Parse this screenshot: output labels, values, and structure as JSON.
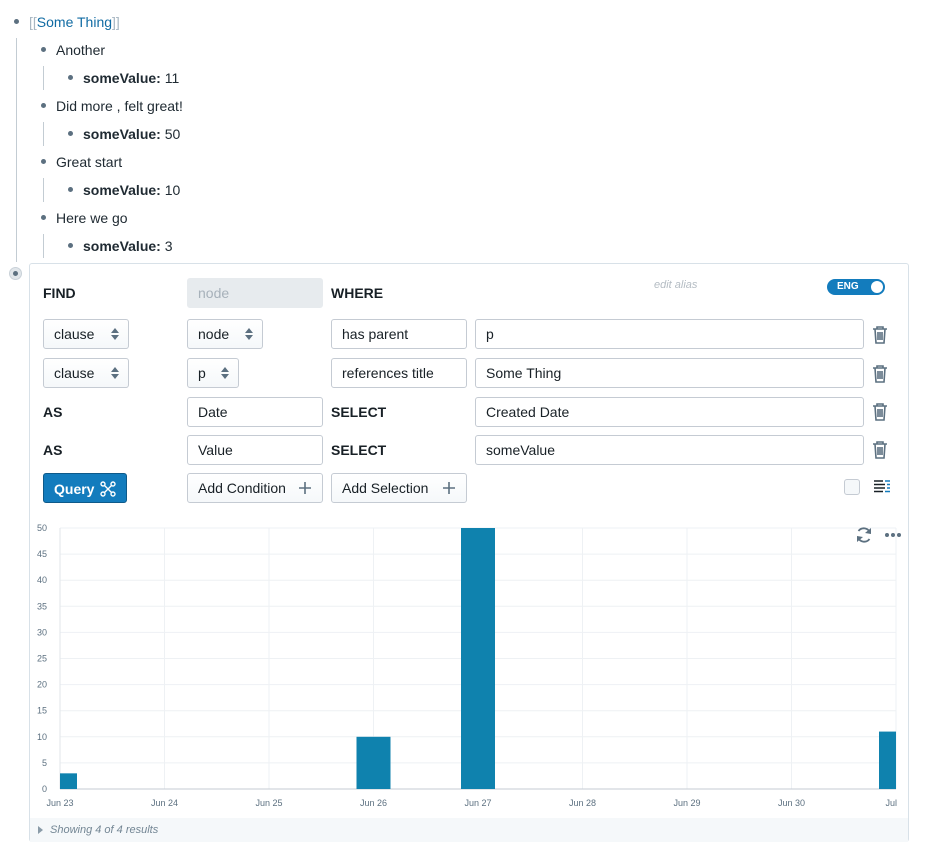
{
  "outline": {
    "root": {
      "bracket_open": "[[",
      "page_ref": "Some Thing",
      "bracket_close": "]]"
    },
    "children": [
      {
        "text": "Another",
        "attr_key": "someValue:",
        "attr_value": "11"
      },
      {
        "text": "Did more , felt great!",
        "attr_key": "someValue:",
        "attr_value": "50"
      },
      {
        "text": "Great start",
        "attr_key": "someValue:",
        "attr_value": "10"
      },
      {
        "text": "Here we go",
        "attr_key": "someValue:",
        "attr_value": "3"
      }
    ]
  },
  "query_builder": {
    "find_label": "FIND",
    "find_placeholder": "node",
    "where_label": "WHERE",
    "edit_alias": "edit alias",
    "toggle_label": "ENG",
    "conditions": [
      {
        "type": "clause",
        "source": "node",
        "relation": "has parent",
        "target": "p"
      },
      {
        "type": "clause",
        "source": "p",
        "relation": "references title",
        "target": "Some Thing"
      }
    ],
    "selections": [
      {
        "as_label": "AS",
        "alias": "Date",
        "select_label": "SELECT",
        "value": "Created Date"
      },
      {
        "as_label": "AS",
        "alias": "Value",
        "select_label": "SELECT",
        "value": "someValue"
      }
    ],
    "query_button": "Query",
    "add_condition": "Add Condition",
    "add_selection": "Add Selection"
  },
  "results": {
    "footer": "Showing 4 of 4 results"
  },
  "colors": {
    "accent": "#137cbd",
    "bar": "#0f82ae"
  },
  "chart_data": {
    "type": "bar",
    "x_ticks": [
      "Jun 23",
      "Jun 24",
      "Jun 25",
      "Jun 26",
      "Jun 27",
      "Jun 28",
      "Jun 29",
      "Jun 30",
      "Jul"
    ],
    "y_ticks": [
      "0",
      "5",
      "10",
      "15",
      "20",
      "25",
      "30",
      "35",
      "40",
      "45",
      "50"
    ],
    "ylim": [
      0,
      50
    ],
    "grid": true,
    "points": [
      {
        "date": "Jun 23",
        "value": 3
      },
      {
        "date": "Jun 26",
        "value": 10
      },
      {
        "date": "Jun 27",
        "value": 50
      },
      {
        "date": "Jul",
        "value": 11
      }
    ]
  }
}
